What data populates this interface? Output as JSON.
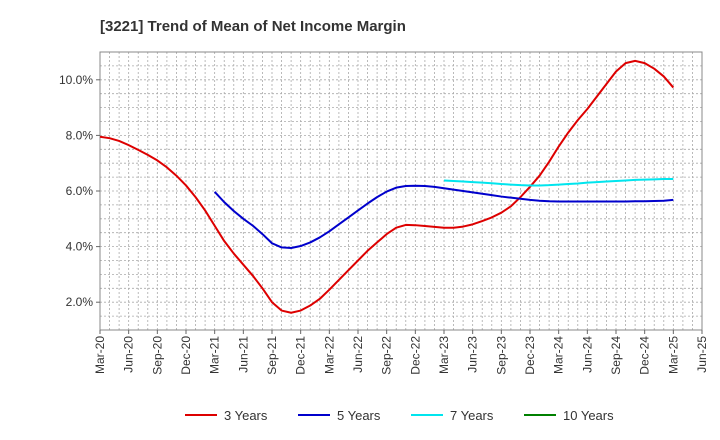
{
  "chart_data": {
    "type": "line",
    "title": "[3221]  Trend of Mean of Net Income Margin",
    "xlabel": "",
    "ylabel": "",
    "x_ticks": [
      "Mar-20",
      "Jun-20",
      "Sep-20",
      "Dec-20",
      "Mar-21",
      "Jun-21",
      "Sep-21",
      "Dec-21",
      "Mar-22",
      "Jun-22",
      "Sep-22",
      "Dec-22",
      "Mar-23",
      "Jun-23",
      "Sep-23",
      "Dec-23",
      "Mar-24",
      "Jun-24",
      "Sep-24",
      "Dec-24",
      "Mar-25",
      "Jun-25"
    ],
    "y_ticks": [
      "2.0%",
      "4.0%",
      "6.0%",
      "8.0%",
      "10.0%"
    ],
    "y_tick_values": [
      2,
      4,
      6,
      8,
      10
    ],
    "ylim": [
      1.0,
      11.0
    ],
    "grid": true,
    "legend_position": "bottom",
    "series": [
      {
        "name": "3 Years",
        "color": "#dd0000",
        "points": [
          [
            "Mar-20",
            7.95
          ],
          [
            "Apr-20",
            7.9
          ],
          [
            "May-20",
            7.8
          ],
          [
            "Jun-20",
            7.65
          ],
          [
            "Jul-20",
            7.48
          ],
          [
            "Aug-20",
            7.3
          ],
          [
            "Sep-20",
            7.1
          ],
          [
            "Oct-20",
            6.85
          ],
          [
            "Nov-20",
            6.55
          ],
          [
            "Dec-20",
            6.2
          ],
          [
            "Jan-21",
            5.78
          ],
          [
            "Feb-21",
            5.3
          ],
          [
            "Mar-21",
            4.75
          ],
          [
            "Apr-21",
            4.2
          ],
          [
            "May-21",
            3.75
          ],
          [
            "Jun-21",
            3.35
          ],
          [
            "Jul-21",
            2.95
          ],
          [
            "Aug-21",
            2.5
          ],
          [
            "Sep-21",
            2.0
          ],
          [
            "Oct-21",
            1.7
          ],
          [
            "Nov-21",
            1.62
          ],
          [
            "Dec-21",
            1.7
          ],
          [
            "Jan-22",
            1.88
          ],
          [
            "Feb-22",
            2.12
          ],
          [
            "Mar-22",
            2.45
          ],
          [
            "Apr-22",
            2.8
          ],
          [
            "May-22",
            3.15
          ],
          [
            "Jun-22",
            3.5
          ],
          [
            "Jul-22",
            3.85
          ],
          [
            "Aug-22",
            4.15
          ],
          [
            "Sep-22",
            4.45
          ],
          [
            "Oct-22",
            4.68
          ],
          [
            "Nov-22",
            4.78
          ],
          [
            "Dec-22",
            4.77
          ],
          [
            "Jan-23",
            4.74
          ],
          [
            "Feb-23",
            4.71
          ],
          [
            "Mar-23",
            4.68
          ],
          [
            "Apr-23",
            4.68
          ],
          [
            "May-23",
            4.72
          ],
          [
            "Jun-23",
            4.8
          ],
          [
            "Jul-23",
            4.92
          ],
          [
            "Aug-23",
            5.05
          ],
          [
            "Sep-23",
            5.22
          ],
          [
            "Oct-23",
            5.45
          ],
          [
            "Nov-23",
            5.78
          ],
          [
            "Dec-23",
            6.15
          ],
          [
            "Jan-24",
            6.55
          ],
          [
            "Feb-24",
            7.05
          ],
          [
            "Mar-24",
            7.6
          ],
          [
            "Apr-24",
            8.1
          ],
          [
            "May-24",
            8.55
          ],
          [
            "Jun-24",
            8.95
          ],
          [
            "Jul-24",
            9.4
          ],
          [
            "Aug-24",
            9.85
          ],
          [
            "Sep-24",
            10.3
          ],
          [
            "Oct-24",
            10.6
          ],
          [
            "Nov-24",
            10.68
          ],
          [
            "Dec-24",
            10.6
          ],
          [
            "Jan-25",
            10.4
          ],
          [
            "Feb-25",
            10.12
          ],
          [
            "Mar-25",
            9.72
          ]
        ]
      },
      {
        "name": "5 Years",
        "color": "#0000cc",
        "points": [
          [
            "Mar-21",
            5.97
          ],
          [
            "Apr-21",
            5.6
          ],
          [
            "May-21",
            5.28
          ],
          [
            "Jun-21",
            5.0
          ],
          [
            "Jul-21",
            4.75
          ],
          [
            "Aug-21",
            4.45
          ],
          [
            "Sep-21",
            4.12
          ],
          [
            "Oct-21",
            3.97
          ],
          [
            "Nov-21",
            3.95
          ],
          [
            "Dec-21",
            4.02
          ],
          [
            "Jan-22",
            4.15
          ],
          [
            "Feb-22",
            4.33
          ],
          [
            "Mar-22",
            4.55
          ],
          [
            "Apr-22",
            4.8
          ],
          [
            "May-22",
            5.05
          ],
          [
            "Jun-22",
            5.3
          ],
          [
            "Jul-22",
            5.55
          ],
          [
            "Aug-22",
            5.78
          ],
          [
            "Sep-22",
            5.98
          ],
          [
            "Oct-22",
            6.12
          ],
          [
            "Nov-22",
            6.18
          ],
          [
            "Dec-22",
            6.19
          ],
          [
            "Jan-23",
            6.18
          ],
          [
            "Feb-23",
            6.15
          ],
          [
            "Mar-23",
            6.1
          ],
          [
            "Apr-23",
            6.05
          ],
          [
            "May-23",
            6.0
          ],
          [
            "Jun-23",
            5.95
          ],
          [
            "Jul-23",
            5.9
          ],
          [
            "Aug-23",
            5.85
          ],
          [
            "Sep-23",
            5.8
          ],
          [
            "Oct-23",
            5.76
          ],
          [
            "Nov-23",
            5.72
          ],
          [
            "Dec-23",
            5.68
          ],
          [
            "Jan-24",
            5.65
          ],
          [
            "Feb-24",
            5.63
          ],
          [
            "Mar-24",
            5.62
          ],
          [
            "Apr-24",
            5.62
          ],
          [
            "May-24",
            5.62
          ],
          [
            "Jun-24",
            5.62
          ],
          [
            "Jul-24",
            5.62
          ],
          [
            "Aug-24",
            5.62
          ],
          [
            "Sep-24",
            5.62
          ],
          [
            "Oct-24",
            5.62
          ],
          [
            "Nov-24",
            5.63
          ],
          [
            "Dec-24",
            5.63
          ],
          [
            "Jan-25",
            5.64
          ],
          [
            "Feb-25",
            5.65
          ],
          [
            "Mar-25",
            5.68
          ]
        ]
      },
      {
        "name": "7 Years",
        "color": "#00e5ee",
        "points": [
          [
            "Mar-23",
            6.38
          ],
          [
            "Apr-23",
            6.36
          ],
          [
            "May-23",
            6.34
          ],
          [
            "Jun-23",
            6.32
          ],
          [
            "Jul-23",
            6.3
          ],
          [
            "Aug-23",
            6.28
          ],
          [
            "Sep-23",
            6.25
          ],
          [
            "Oct-23",
            6.23
          ],
          [
            "Nov-23",
            6.21
          ],
          [
            "Dec-23",
            6.2
          ],
          [
            "Jan-24",
            6.2
          ],
          [
            "Feb-24",
            6.21
          ],
          [
            "Mar-24",
            6.23
          ],
          [
            "Apr-24",
            6.25
          ],
          [
            "May-24",
            6.27
          ],
          [
            "Jun-24",
            6.3
          ],
          [
            "Jul-24",
            6.32
          ],
          [
            "Aug-24",
            6.34
          ],
          [
            "Sep-24",
            6.36
          ],
          [
            "Oct-24",
            6.38
          ],
          [
            "Nov-24",
            6.4
          ],
          [
            "Dec-24",
            6.41
          ],
          [
            "Jan-25",
            6.42
          ],
          [
            "Feb-25",
            6.43
          ],
          [
            "Mar-25",
            6.43
          ]
        ]
      },
      {
        "name": "10 Years",
        "color": "#008000",
        "points": []
      }
    ]
  }
}
